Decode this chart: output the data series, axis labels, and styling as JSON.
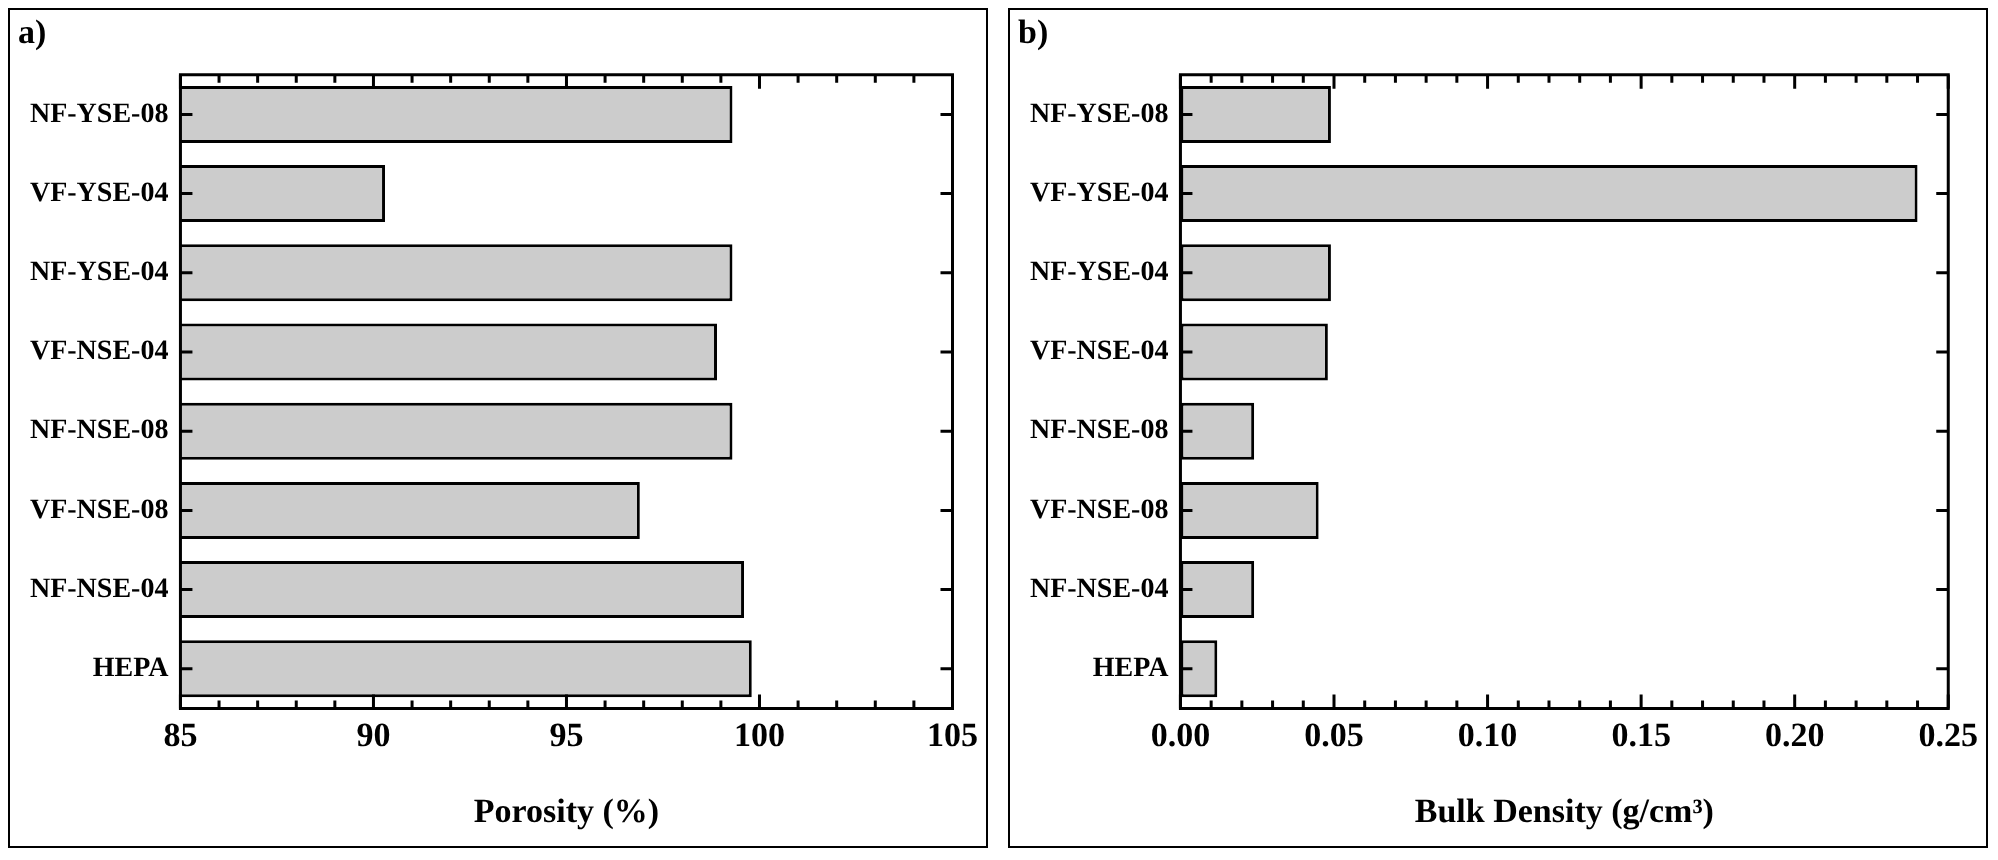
{
  "chart_data": [
    {
      "type": "bar",
      "orientation": "horizontal",
      "title": "a)",
      "xlabel": "Porosity (%)",
      "categories": [
        "NF-YSE-08",
        "VF-YSE-04",
        "NF-YSE-04",
        "VF-NSE-04",
        "NF-NSE-08",
        "VF-NSE-08",
        "NF-NSE-04",
        "HEPA"
      ],
      "values": [
        99.3,
        90.3,
        99.3,
        98.9,
        99.3,
        96.9,
        99.6,
        99.8
      ],
      "color": "#cccccc",
      "xlim": [
        85,
        105
      ],
      "xticks": [
        85,
        {
          "value": 86,
          "label": null
        },
        {
          "value": 87,
          "label": null
        },
        {
          "value": 88,
          "label": null
        },
        {
          "value": 89,
          "label": null
        },
        90,
        {
          "value": 91,
          "label": null
        },
        {
          "value": 92,
          "label": null
        },
        {
          "value": 93,
          "label": null
        },
        {
          "value": 94,
          "label": null
        },
        95,
        {
          "value": 96,
          "label": null
        },
        {
          "value": 97,
          "label": null
        },
        {
          "value": 98,
          "label": null
        },
        {
          "value": 99,
          "label": null
        },
        100,
        {
          "value": 101,
          "label": null
        },
        {
          "value": 102,
          "label": null
        },
        {
          "value": 103,
          "label": null
        },
        {
          "value": 104,
          "label": null
        },
        105
      ],
      "grid": false,
      "legend": false
    },
    {
      "type": "bar",
      "orientation": "horizontal",
      "title": "b)",
      "xlabel": "Bulk Density (g/cm³)",
      "categories": [
        "NF-YSE-08",
        "VF-YSE-04",
        "NF-YSE-04",
        "VF-NSE-04",
        "NF-NSE-08",
        "VF-NSE-08",
        "NF-NSE-04",
        "HEPA"
      ],
      "values": [
        0.049,
        0.24,
        0.049,
        0.048,
        0.024,
        0.045,
        0.024,
        0.012
      ],
      "color": "#cccccc",
      "xlim": [
        0,
        0.25
      ],
      "xticks": [
        {
          "value": 0,
          "label": "0.00"
        },
        {
          "value": 0.01,
          "label": null
        },
        {
          "value": 0.02,
          "label": null
        },
        {
          "value": 0.03,
          "label": null
        },
        {
          "value": 0.04,
          "label": null
        },
        {
          "value": 0.05,
          "label": "0.05"
        },
        {
          "value": 0.06,
          "label": null
        },
        {
          "value": 0.07,
          "label": null
        },
        {
          "value": 0.08,
          "label": null
        },
        {
          "value": 0.09,
          "label": null
        },
        {
          "value": 0.1,
          "label": "0.10"
        },
        {
          "value": 0.11,
          "label": null
        },
        {
          "value": 0.12,
          "label": null
        },
        {
          "value": 0.13,
          "label": null
        },
        {
          "value": 0.14,
          "label": null
        },
        {
          "value": 0.15,
          "label": "0.15"
        },
        {
          "value": 0.16,
          "label": null
        },
        {
          "value": 0.17,
          "label": null
        },
        {
          "value": 0.18,
          "label": null
        },
        {
          "value": 0.19,
          "label": null
        },
        {
          "value": 0.2,
          "label": "0.20"
        },
        {
          "value": 0.21,
          "label": null
        },
        {
          "value": 0.22,
          "label": null
        },
        {
          "value": 0.23,
          "label": null
        },
        {
          "value": 0.24,
          "label": null
        },
        {
          "value": 0.25,
          "label": "0.25"
        }
      ],
      "grid": false,
      "legend": false
    }
  ]
}
